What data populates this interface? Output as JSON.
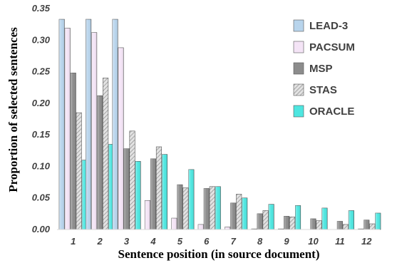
{
  "chart_data": {
    "type": "bar",
    "xlabel": "Sentence position (in source document)",
    "ylabel": "Proportion of selected sentences",
    "ylim": [
      0,
      0.35
    ],
    "yticks": [
      "0.00",
      "0.05",
      "0.10",
      "0.15",
      "0.20",
      "0.25",
      "0.30",
      "0.35"
    ],
    "categories": [
      "1",
      "2",
      "3",
      "4",
      "5",
      "6",
      "7",
      "8",
      "9",
      "10",
      "11",
      "12"
    ],
    "grid": false,
    "legend_position": "top-right",
    "series": [
      {
        "name": "LEAD-3",
        "color": "#b8d4ec",
        "pattern": "solid",
        "values": [
          0.333,
          0.333,
          0.333,
          0,
          0,
          0,
          0,
          0,
          0,
          0,
          0,
          0
        ]
      },
      {
        "name": "PACSUM",
        "color": "#f4e4f6",
        "pattern": "solid",
        "values": [
          0.319,
          0.312,
          0.288,
          0.046,
          0.018,
          0.008,
          0.004,
          0.001,
          0.001,
          0,
          0,
          0.001
        ]
      },
      {
        "name": "MSP",
        "color": "#8c8c8c",
        "pattern": "solid",
        "values": [
          0.248,
          0.212,
          0.128,
          0.112,
          0.071,
          0.065,
          0.042,
          0.025,
          0.021,
          0.017,
          0.013,
          0.015
        ]
      },
      {
        "name": "STAS",
        "color": "#d0d0d0",
        "pattern": "hatch",
        "values": [
          0.185,
          0.24,
          0.156,
          0.131,
          0.066,
          0.068,
          0.056,
          0.03,
          0.02,
          0.014,
          0.008,
          0.009
        ]
      },
      {
        "name": "ORACLE",
        "color": "#4ee6e0",
        "pattern": "solid",
        "values": [
          0.11,
          0.135,
          0.108,
          0.119,
          0.095,
          0.068,
          0.05,
          0.04,
          0.038,
          0.034,
          0.03,
          0.026
        ]
      }
    ]
  }
}
